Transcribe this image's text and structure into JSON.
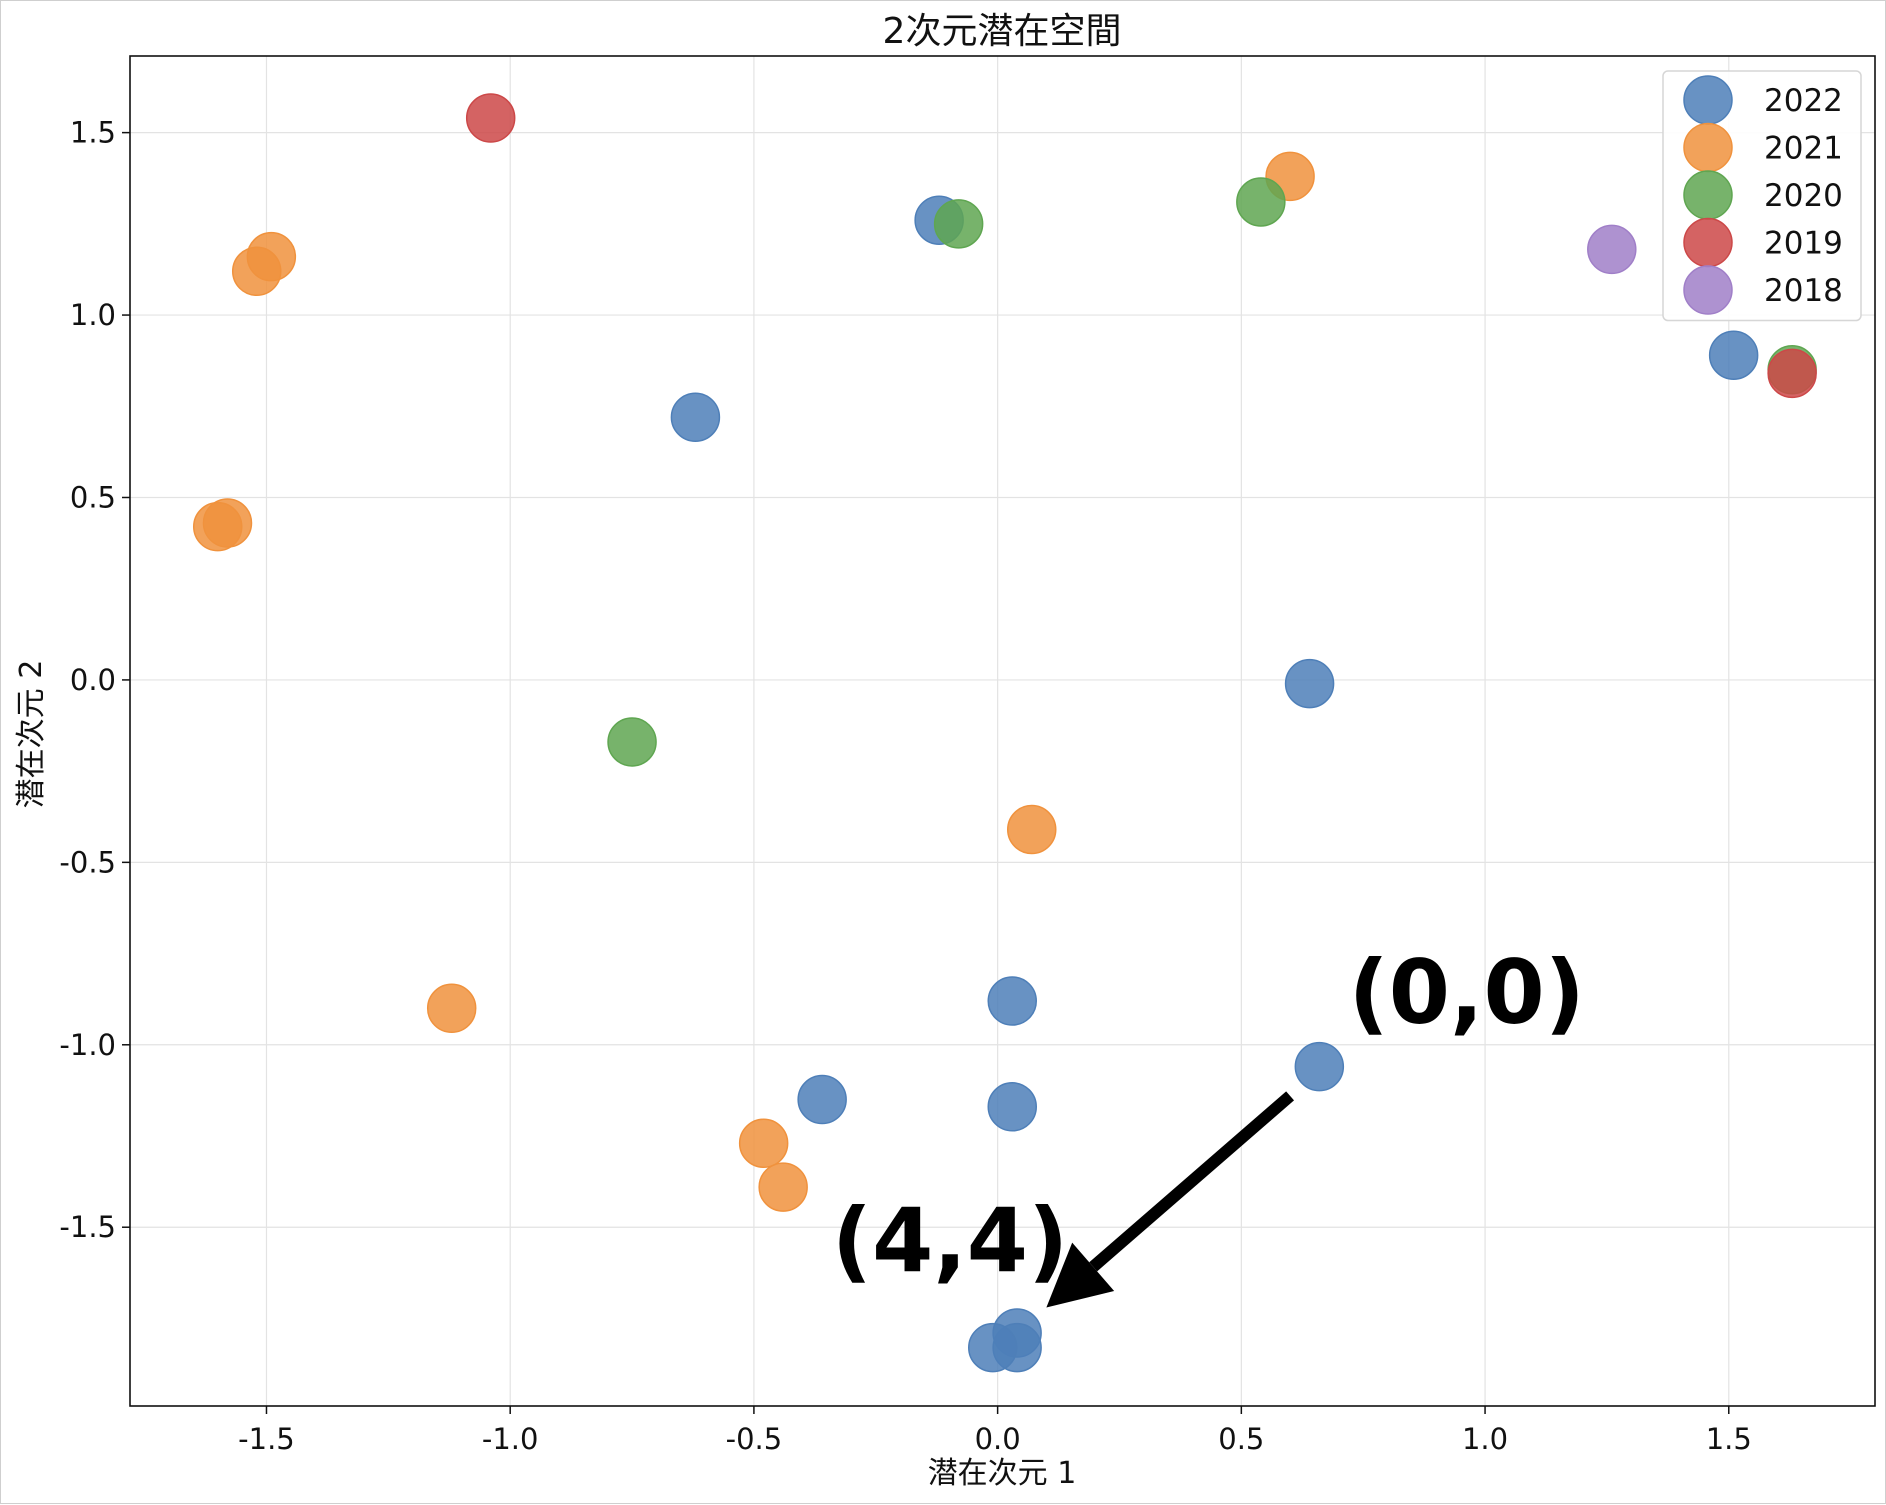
{
  "chart_data": {
    "type": "scatter",
    "title": "2次元潜在空間",
    "xlabel": "潜在次元 1",
    "ylabel": "潜在次元 2",
    "xlim": [
      -1.78,
      1.8
    ],
    "ylim": [
      -1.99,
      1.71
    ],
    "xticks": [
      -1.5,
      -1.0,
      -0.5,
      0.0,
      0.5,
      1.0,
      1.5
    ],
    "xtick_labels": [
      "-1.5",
      "-1.0",
      "-0.5",
      "0.0",
      "0.5",
      "1.0",
      "1.5"
    ],
    "yticks": [
      1.5,
      1.0,
      0.5,
      0.0,
      -0.5,
      -1.0,
      -1.5
    ],
    "ytick_labels": [
      "1.5",
      "1.0",
      "0.5",
      "0.0",
      "-0.5",
      "-1.0",
      "-1.5"
    ],
    "grid": true,
    "legend_position": "top-right",
    "series": [
      {
        "name": "2022",
        "color": "#4e7fb8",
        "points": [
          {
            "x": -0.12,
            "y": 1.26
          },
          {
            "x": -0.62,
            "y": 0.72
          },
          {
            "x": 1.51,
            "y": 0.89
          },
          {
            "x": 0.64,
            "y": -0.01
          },
          {
            "x": 0.03,
            "y": -0.88
          },
          {
            "x": 0.03,
            "y": -1.17
          },
          {
            "x": -0.36,
            "y": -1.15
          },
          {
            "x": 0.66,
            "y": -1.06
          },
          {
            "x": 0.04,
            "y": -1.79
          },
          {
            "x": 0.04,
            "y": -1.83
          },
          {
            "x": -0.01,
            "y": -1.83
          }
        ]
      },
      {
        "name": "2021",
        "color": "#f0923d",
        "points": [
          {
            "x": -1.49,
            "y": 1.16
          },
          {
            "x": -1.52,
            "y": 1.12
          },
          {
            "x": -1.58,
            "y": 0.43
          },
          {
            "x": -1.6,
            "y": 0.42
          },
          {
            "x": 0.6,
            "y": 1.38
          },
          {
            "x": 0.07,
            "y": -0.41
          },
          {
            "x": -1.12,
            "y": -0.9
          },
          {
            "x": -0.48,
            "y": -1.27
          },
          {
            "x": -0.44,
            "y": -1.39
          }
        ]
      },
      {
        "name": "2020",
        "color": "#5fa651",
        "points": [
          {
            "x": -0.08,
            "y": 1.25
          },
          {
            "x": 0.54,
            "y": 1.31
          },
          {
            "x": -0.75,
            "y": -0.17
          },
          {
            "x": 1.63,
            "y": 0.85
          }
        ]
      },
      {
        "name": "2019",
        "color": "#cc4848",
        "points": [
          {
            "x": -1.04,
            "y": 1.54
          },
          {
            "x": 1.63,
            "y": 0.84
          }
        ]
      },
      {
        "name": "2018",
        "color": "#a07fc8",
        "points": [
          {
            "x": 1.26,
            "y": 1.18
          }
        ]
      }
    ],
    "annotations": [
      {
        "text": "(0,0)",
        "x": 0.72,
        "y": -0.94
      },
      {
        "text": "(4,4)",
        "x": -0.34,
        "y": -1.62
      }
    ],
    "arrow": {
      "from": [
        0.6,
        -1.14
      ],
      "to": [
        0.1,
        -1.72
      ]
    }
  }
}
